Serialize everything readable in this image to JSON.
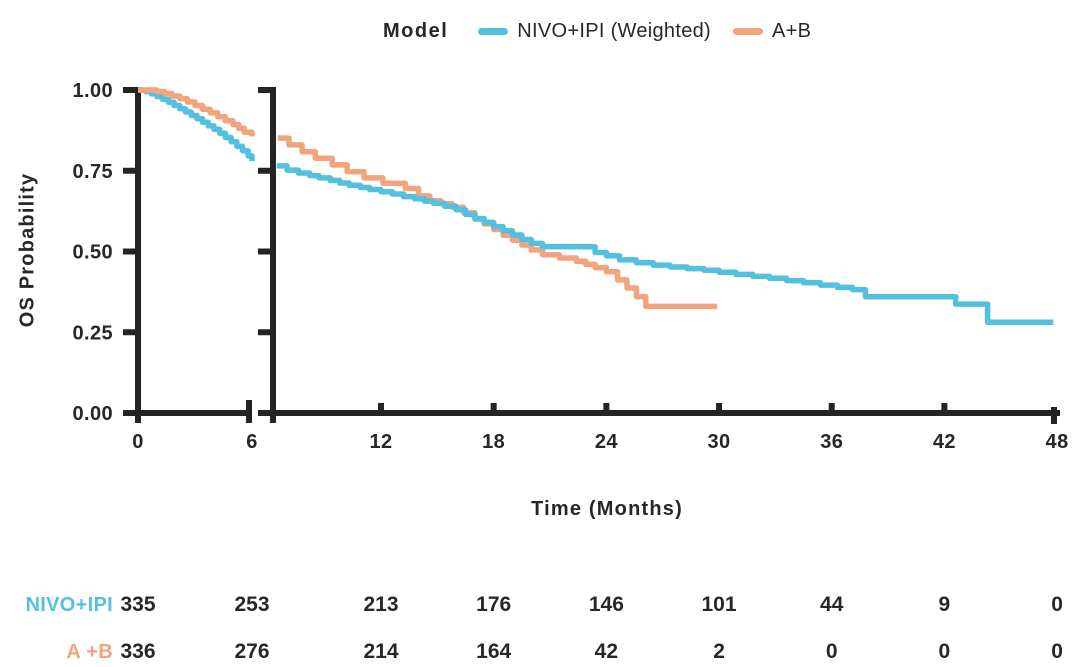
{
  "legend": {
    "title": "Model",
    "items": [
      {
        "label": "NIVO+IPI (Weighted)",
        "color": "#53C0E0"
      },
      {
        "label": "A+B",
        "color": "#F2A47C"
      }
    ]
  },
  "chart_data": {
    "type": "line",
    "subtype": "kaplan-meier-step",
    "title": "",
    "xlabel": "Time (Months)",
    "ylabel": "OS Probability",
    "x_ticks": [
      0,
      6,
      12,
      18,
      24,
      30,
      36,
      42,
      48
    ],
    "y_tick_labels": [
      "1.00",
      "0.75",
      "0.50",
      "0.25",
      "0.00"
    ],
    "y_tick_values": [
      1.0,
      0.75,
      0.5,
      0.25,
      0.0
    ],
    "ylim": [
      0,
      1
    ],
    "axis_break_after_month": 6,
    "left_panel_domain": [
      0,
      6
    ],
    "right_panel_domain": [
      6.1,
      48
    ],
    "axis_color": "#262324",
    "grid": false,
    "legend_position": "top",
    "series": [
      {
        "name": "NIVO+IPI (Weighted)",
        "color": "#53C0E0",
        "left_panel_points": [
          [
            0,
            1.0
          ],
          [
            0.4,
            0.995
          ],
          [
            0.7,
            0.988
          ],
          [
            1.0,
            0.98
          ],
          [
            1.3,
            0.971
          ],
          [
            1.6,
            0.962
          ],
          [
            1.9,
            0.952
          ],
          [
            2.2,
            0.942
          ],
          [
            2.5,
            0.932
          ],
          [
            2.8,
            0.921
          ],
          [
            3.1,
            0.911
          ],
          [
            3.4,
            0.9
          ],
          [
            3.7,
            0.889
          ],
          [
            4.0,
            0.878
          ],
          [
            4.3,
            0.866
          ],
          [
            4.6,
            0.853
          ],
          [
            4.9,
            0.84
          ],
          [
            5.2,
            0.826
          ],
          [
            5.5,
            0.812
          ],
          [
            5.8,
            0.796
          ],
          [
            6.0,
            0.78
          ]
        ],
        "right_panel_points": [
          [
            6.45,
            0.765
          ],
          [
            7.0,
            0.752
          ],
          [
            7.6,
            0.743
          ],
          [
            8.2,
            0.735
          ],
          [
            8.7,
            0.728
          ],
          [
            9.3,
            0.72
          ],
          [
            9.8,
            0.712
          ],
          [
            10.3,
            0.705
          ],
          [
            10.9,
            0.698
          ],
          [
            11.4,
            0.692
          ],
          [
            12.0,
            0.685
          ],
          [
            12.6,
            0.678
          ],
          [
            13.2,
            0.67
          ],
          [
            13.8,
            0.663
          ],
          [
            14.3,
            0.656
          ],
          [
            14.8,
            0.649
          ],
          [
            15.4,
            0.64
          ],
          [
            16.0,
            0.629
          ],
          [
            16.5,
            0.615
          ],
          [
            17.0,
            0.602
          ],
          [
            17.5,
            0.59
          ],
          [
            18.0,
            0.577
          ],
          [
            18.5,
            0.564
          ],
          [
            19.0,
            0.551
          ],
          [
            19.5,
            0.537
          ],
          [
            20.0,
            0.525
          ],
          [
            20.6,
            0.515
          ],
          [
            23.0,
            0.515
          ],
          [
            23.4,
            0.497
          ],
          [
            24.0,
            0.487
          ],
          [
            24.7,
            0.474
          ],
          [
            25.6,
            0.465
          ],
          [
            26.5,
            0.458
          ],
          [
            27.4,
            0.452
          ],
          [
            28.3,
            0.447
          ],
          [
            29.2,
            0.442
          ],
          [
            30.0,
            0.436
          ],
          [
            30.9,
            0.429
          ],
          [
            31.8,
            0.423
          ],
          [
            32.7,
            0.417
          ],
          [
            33.6,
            0.41
          ],
          [
            34.5,
            0.403
          ],
          [
            35.4,
            0.396
          ],
          [
            36.3,
            0.389
          ],
          [
            37.1,
            0.382
          ],
          [
            37.8,
            0.36
          ],
          [
            42.4,
            0.36
          ],
          [
            42.6,
            0.337
          ],
          [
            44.2,
            0.337
          ],
          [
            44.3,
            0.281
          ],
          [
            47.8,
            0.281
          ]
        ]
      },
      {
        "name": "A+B",
        "color": "#F2A47C",
        "left_panel_points": [
          [
            0,
            1.0
          ],
          [
            0.7,
            1.0
          ],
          [
            1.0,
            0.995
          ],
          [
            1.4,
            0.989
          ],
          [
            1.8,
            0.981
          ],
          [
            2.2,
            0.973
          ],
          [
            2.6,
            0.963
          ],
          [
            3.0,
            0.952
          ],
          [
            3.4,
            0.94
          ],
          [
            3.8,
            0.929
          ],
          [
            4.2,
            0.917
          ],
          [
            4.6,
            0.905
          ],
          [
            5.0,
            0.893
          ],
          [
            5.3,
            0.881
          ],
          [
            5.6,
            0.869
          ],
          [
            6.0,
            0.856
          ]
        ],
        "right_panel_points": [
          [
            6.5,
            0.851
          ],
          [
            7.1,
            0.83
          ],
          [
            7.8,
            0.809
          ],
          [
            8.5,
            0.789
          ],
          [
            9.4,
            0.768
          ],
          [
            10.2,
            0.747
          ],
          [
            11.1,
            0.728
          ],
          [
            12.1,
            0.711
          ],
          [
            13.3,
            0.695
          ],
          [
            14.0,
            0.672
          ],
          [
            14.6,
            0.657
          ],
          [
            15.2,
            0.648
          ],
          [
            15.8,
            0.637
          ],
          [
            16.4,
            0.62
          ],
          [
            17.0,
            0.6
          ],
          [
            17.5,
            0.585
          ],
          [
            18.0,
            0.568
          ],
          [
            18.5,
            0.55
          ],
          [
            19.0,
            0.535
          ],
          [
            19.5,
            0.52
          ],
          [
            20.0,
            0.505
          ],
          [
            20.6,
            0.49
          ],
          [
            21.5,
            0.48
          ],
          [
            22.4,
            0.47
          ],
          [
            22.9,
            0.46
          ],
          [
            23.4,
            0.45
          ],
          [
            24.0,
            0.437
          ],
          [
            24.6,
            0.412
          ],
          [
            25.1,
            0.387
          ],
          [
            25.6,
            0.36
          ],
          [
            26.1,
            0.33
          ],
          [
            29.9,
            0.33
          ]
        ]
      }
    ]
  },
  "risk_table": {
    "time_points": [
      0,
      6,
      12,
      18,
      24,
      30,
      36,
      42,
      48
    ],
    "rows": [
      {
        "label": "NIVO+IPI",
        "color": "#53C0E0",
        "values": [
          "335",
          "253",
          "213",
          "176",
          "146",
          "101",
          "44",
          "9",
          "0"
        ]
      },
      {
        "label": "A +B",
        "color": "#F2A47C",
        "values": [
          "336",
          "276",
          "214",
          "164",
          "42",
          "2",
          "0",
          "0",
          "0"
        ]
      }
    ]
  }
}
